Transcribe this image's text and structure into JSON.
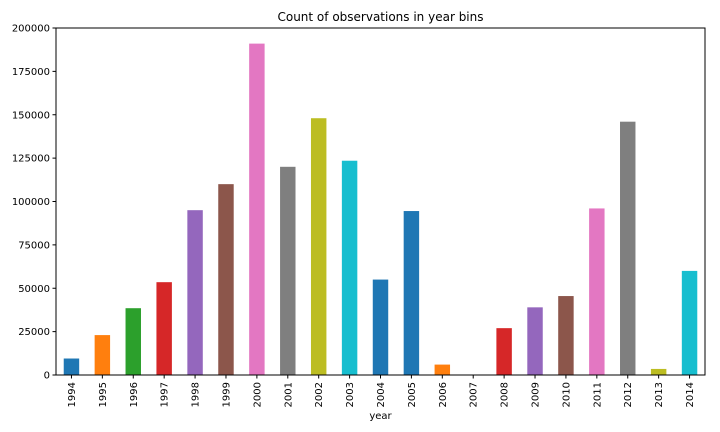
{
  "chart_data": {
    "type": "bar",
    "title": "Count of observations in year bins",
    "xlabel": "year",
    "ylabel": "",
    "ylim": [
      0,
      200000
    ],
    "yticks": [
      0,
      25000,
      50000,
      75000,
      100000,
      125000,
      150000,
      175000,
      200000
    ],
    "grid": false,
    "categories": [
      "1994",
      "1995",
      "1996",
      "1997",
      "1998",
      "1999",
      "2000",
      "2001",
      "2002",
      "2003",
      "2004",
      "2005",
      "2006",
      "2007",
      "2008",
      "2009",
      "2010",
      "2011",
      "2012",
      "2013",
      "2014"
    ],
    "values": [
      9500,
      23000,
      38500,
      53500,
      95000,
      110000,
      191000,
      120000,
      148000,
      123500,
      55000,
      94500,
      6000,
      0,
      27000,
      39000,
      45500,
      96000,
      146000,
      3500,
      60000
    ],
    "colors": [
      "#1f77b4",
      "#ff7f0e",
      "#2ca02c",
      "#d62728",
      "#9467bd",
      "#8c564b",
      "#e377c2",
      "#7f7f7f",
      "#bcbd22",
      "#17becf",
      "#1f77b4",
      "#1f77b4",
      "#ff7f0e",
      "#2ca02c",
      "#d62728",
      "#9467bd",
      "#8c564b",
      "#e377c2",
      "#7f7f7f",
      "#bcbd22",
      "#17becf"
    ]
  }
}
